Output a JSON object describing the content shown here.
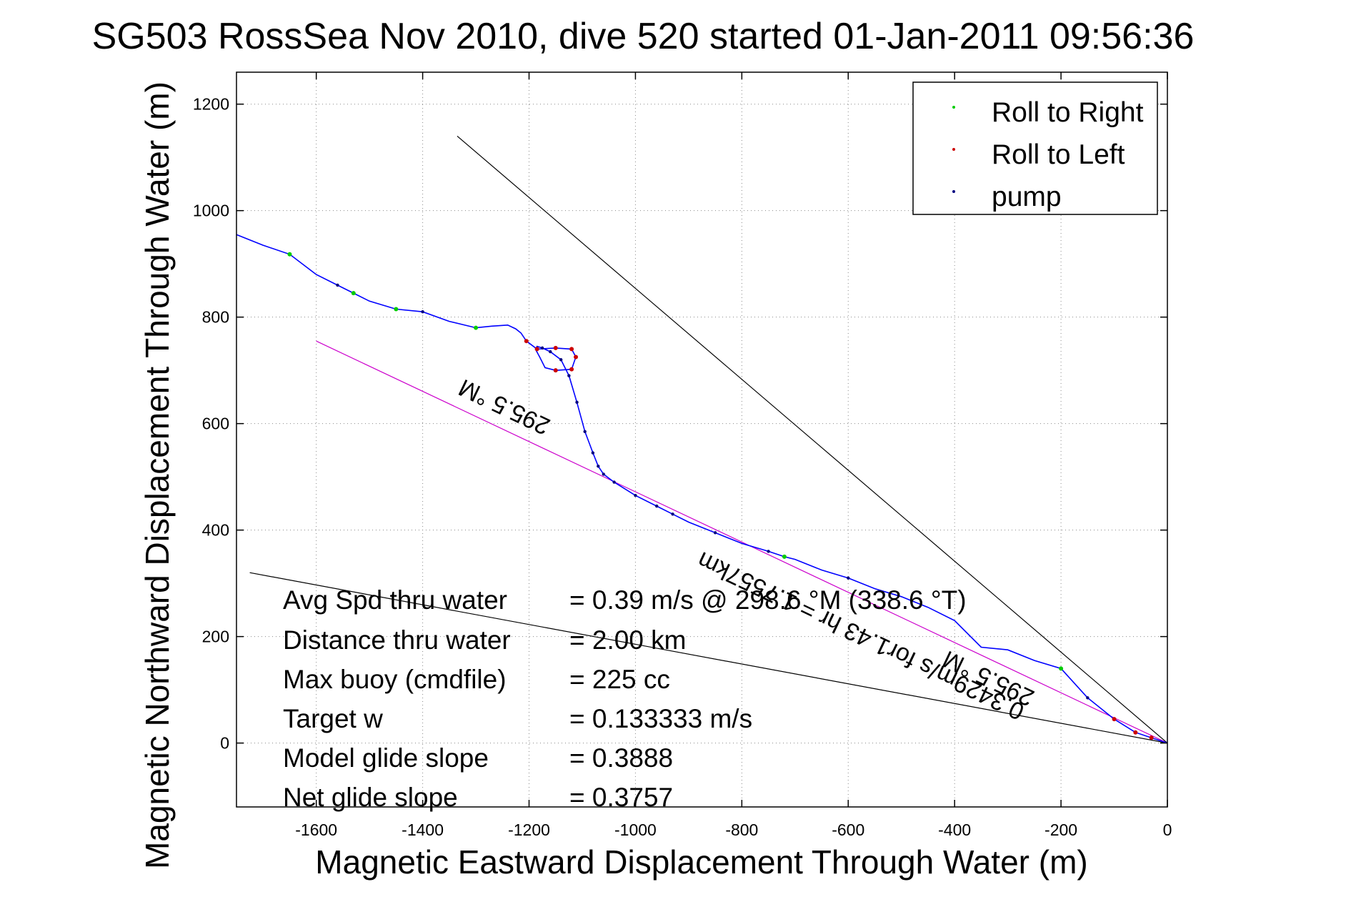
{
  "chart_data": {
    "type": "line",
    "title": "SG503 RossSea Nov 2010, dive 520 started 01-Jan-2011 09:56:36",
    "xlabel": "Magnetic Eastward Displacement Through Water (m)",
    "ylabel": "Magnetic Northward Displacement Through Water (m)",
    "xlim": [
      -1750,
      0
    ],
    "ylim": [
      -120,
      1260
    ],
    "xticks": [
      -1600,
      -1400,
      -1200,
      -1000,
      -800,
      -600,
      -400,
      -200,
      0
    ],
    "yticks": [
      0,
      200,
      400,
      600,
      800,
      1000,
      1200
    ],
    "xtick_labels": [
      "-1600",
      "-1400",
      "-1200",
      "-1000",
      "-800",
      "-600",
      "-400",
      "-200",
      "0"
    ],
    "ytick_labels": [
      "0",
      "200",
      "400",
      "600",
      "800",
      "1000",
      "1200"
    ],
    "grid": true,
    "legend_position": "top-right",
    "legend": [
      {
        "label": "Roll to Right",
        "color": "#00cc00"
      },
      {
        "label": "Roll to Left",
        "color": "#cc0000"
      },
      {
        "label": "pump",
        "color": "#000080"
      }
    ],
    "series": [
      {
        "name": "",
        "color": "#0000ff",
        "x": [
          0,
          -30,
          -60,
          -100,
          -150,
          -200,
          -250,
          -300,
          -350,
          -400,
          -450,
          -500,
          -550,
          -600,
          -650,
          -700,
          -720,
          -750,
          -800,
          -850,
          -900,
          -930,
          -960,
          -1000,
          -1040,
          -1060,
          -1070,
          -1080,
          -1095,
          -1110,
          -1125,
          -1140,
          -1160,
          -1175,
          -1185,
          -1188,
          -1180,
          -1170,
          -1150,
          -1120,
          -1112,
          -1120,
          -1150,
          -1185,
          -1205,
          -1215,
          -1225,
          -1240,
          -1270,
          -1300,
          -1350,
          -1400,
          -1450,
          -1500,
          -1530,
          -1560,
          -1600,
          -1650,
          -1700,
          -1750
        ],
        "y": [
          0,
          10,
          20,
          45,
          85,
          140,
          155,
          175,
          180,
          230,
          255,
          275,
          290,
          310,
          325,
          345,
          350,
          360,
          375,
          395,
          415,
          430,
          445,
          465,
          490,
          505,
          520,
          545,
          585,
          640,
          690,
          720,
          735,
          742,
          745,
          740,
          725,
          705,
          700,
          702,
          725,
          740,
          742,
          740,
          755,
          770,
          778,
          785,
          783,
          780,
          792,
          810,
          815,
          830,
          845,
          860,
          880,
          918,
          935,
          955
        ]
      },
      {
        "name": "",
        "color": "#cc00cc",
        "x": [
          0,
          -1600
        ],
        "y": [
          0,
          755
        ]
      },
      {
        "name": "",
        "color": "#000000",
        "x": [
          0,
          -1335
        ],
        "y": [
          0,
          1140
        ]
      },
      {
        "name": "",
        "color": "#000000",
        "x": [
          0,
          -1725
        ],
        "y": [
          0,
          320
        ]
      }
    ],
    "annotations": [
      {
        "text": "295.5 °M",
        "x": -1240,
        "y": 645,
        "rotation": 205.5
      },
      {
        "text": "0.3429m/s for1.43 hr = 1.7557km",
        "x": -570,
        "y": 215,
        "rotation": 205.5
      },
      {
        "text": "295.5 °M",
        "x": -330,
        "y": 135,
        "rotation": 205.5
      }
    ],
    "stats": [
      {
        "label": "Avg Spd thru water",
        "value": "=  0.39 m/s @ 298.6 °M (338.6 °T)"
      },
      {
        "label": "Distance thru water",
        "value": "=  2.00 km"
      },
      {
        "label": "Max buoy (cmdfile)",
        "value": "= 225 cc"
      },
      {
        "label": "Target w",
        "value": "= 0.133333 m/s"
      },
      {
        "label": "Model glide slope",
        "value": "= 0.3888"
      },
      {
        "label": "Net glide slope",
        "value": "= 0.3757"
      }
    ]
  }
}
